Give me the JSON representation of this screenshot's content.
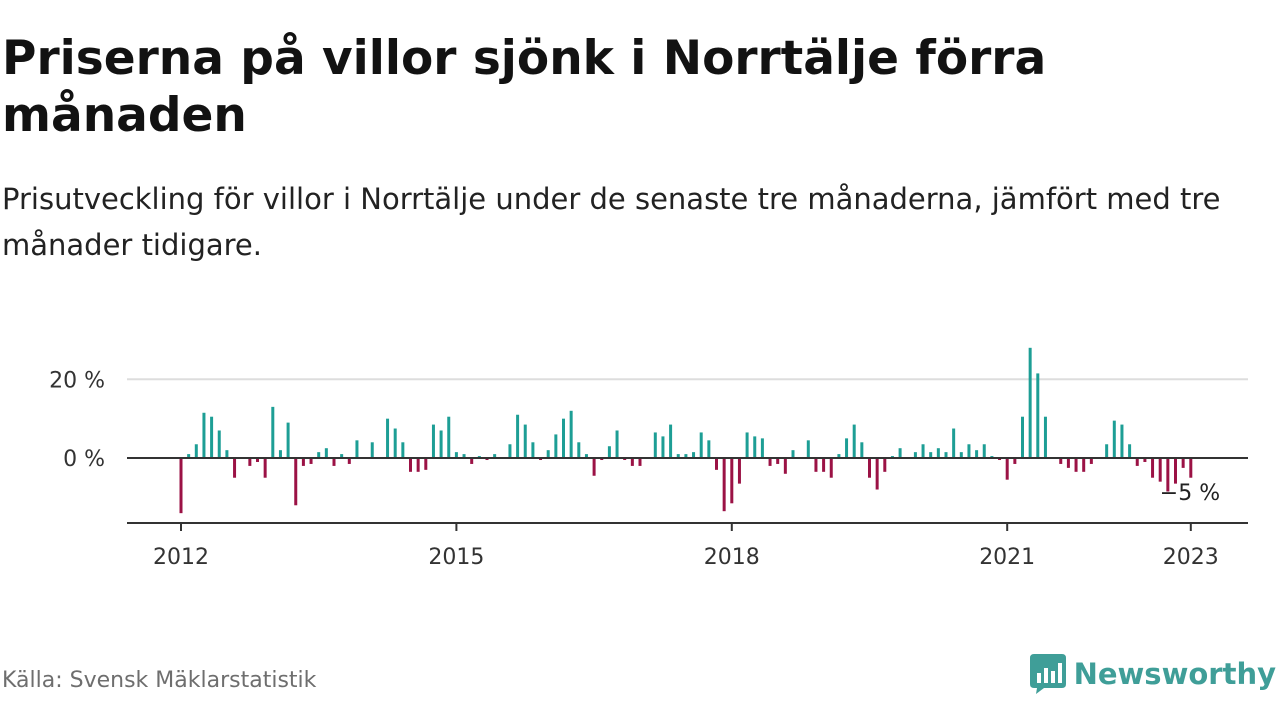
{
  "header": {
    "title": "Priserna på villor sjönk i Norrtälje förra månaden",
    "subtitle": "Prisutveckling för villor i Norrtälje under de senaste tre månaderna, jämfört med tre månader tidigare."
  },
  "footer": {
    "source": "Källa: Svensk Mäklarstatistik",
    "brand": "Newsworthy"
  },
  "colors": {
    "positive": "#1d9e95",
    "negative": "#9b1245",
    "grid": "#dddddd",
    "axis": "#333333",
    "brand": "#3f9e98"
  },
  "chart_data": {
    "type": "bar",
    "title": "",
    "xlabel": "",
    "ylabel": "",
    "ylim": [
      -16.5,
      31
    ],
    "y_ticks": [
      0,
      20
    ],
    "y_tick_labels": [
      "0 %",
      "20 %"
    ],
    "x_ticks": [
      "2012-01",
      "2015-01",
      "2018-01",
      "2021-01",
      "2023-01"
    ],
    "x_tick_labels": [
      "2012",
      "2015",
      "2018",
      "2021",
      "2023"
    ],
    "grid": true,
    "last_value_label": "−5 %",
    "x": [
      "2012-01",
      "2012-02",
      "2012-03",
      "2012-04",
      "2012-05",
      "2012-06",
      "2012-07",
      "2012-08",
      "2012-09",
      "2012-10",
      "2012-11",
      "2012-12",
      "2013-01",
      "2013-02",
      "2013-03",
      "2013-04",
      "2013-05",
      "2013-06",
      "2013-07",
      "2013-08",
      "2013-09",
      "2013-10",
      "2013-11",
      "2013-12",
      "2014-01",
      "2014-02",
      "2014-03",
      "2014-04",
      "2014-05",
      "2014-06",
      "2014-07",
      "2014-08",
      "2014-09",
      "2014-10",
      "2014-11",
      "2014-12",
      "2015-01",
      "2015-02",
      "2015-03",
      "2015-04",
      "2015-05",
      "2015-06",
      "2015-07",
      "2015-08",
      "2015-09",
      "2015-10",
      "2015-11",
      "2015-12",
      "2016-01",
      "2016-02",
      "2016-03",
      "2016-04",
      "2016-05",
      "2016-06",
      "2016-07",
      "2016-08",
      "2016-09",
      "2016-10",
      "2016-11",
      "2016-12",
      "2017-01",
      "2017-02",
      "2017-03",
      "2017-04",
      "2017-05",
      "2017-06",
      "2017-07",
      "2017-08",
      "2017-09",
      "2017-10",
      "2017-11",
      "2017-12",
      "2018-01",
      "2018-02",
      "2018-03",
      "2018-04",
      "2018-05",
      "2018-06",
      "2018-07",
      "2018-08",
      "2018-09",
      "2018-10",
      "2018-11",
      "2018-12",
      "2019-01",
      "2019-02",
      "2019-03",
      "2019-04",
      "2019-05",
      "2019-06",
      "2019-07",
      "2019-08",
      "2019-09",
      "2019-10",
      "2019-11",
      "2019-12",
      "2020-01",
      "2020-02",
      "2020-03",
      "2020-04",
      "2020-05",
      "2020-06",
      "2020-07",
      "2020-08",
      "2020-09",
      "2020-10",
      "2020-11",
      "2020-12",
      "2021-01",
      "2021-02",
      "2021-03",
      "2021-04",
      "2021-05",
      "2021-06",
      "2021-07",
      "2021-08",
      "2021-09",
      "2021-10",
      "2021-11",
      "2021-12",
      "2022-01",
      "2022-02",
      "2022-03",
      "2022-04",
      "2022-05",
      "2022-06",
      "2022-07",
      "2022-08",
      "2022-09",
      "2022-10",
      "2022-11",
      "2022-12",
      "2023-01"
    ],
    "values": [
      -14,
      1,
      3.5,
      11.5,
      10.5,
      7,
      2,
      -5,
      0,
      -2,
      -1,
      -5,
      13,
      2,
      9,
      -12,
      -2,
      -1.5,
      1.5,
      2.5,
      -2,
      1,
      -1.5,
      4.5,
      0,
      4,
      0,
      10,
      7.5,
      4,
      -3.5,
      -3.5,
      -3,
      8.5,
      7,
      10.5,
      1.5,
      1,
      -1.5,
      0.5,
      -0.5,
      1,
      0,
      3.5,
      11,
      8.5,
      4,
      -0.5,
      2,
      6,
      10,
      12,
      4,
      1,
      -4.5,
      -0.5,
      3,
      7,
      -0.5,
      -2,
      -2,
      0,
      6.5,
      5.5,
      8.5,
      1,
      1,
      1.5,
      6.5,
      4.5,
      -3,
      -13.5,
      -11.5,
      -6.5,
      6.5,
      5.5,
      5,
      -2,
      -1.5,
      -4,
      2,
      0,
      4.5,
      -3.5,
      -3.5,
      -5,
      1,
      5,
      8.5,
      4,
      -5,
      -8,
      -3.5,
      0.5,
      2.5,
      0,
      1.5,
      3.5,
      1.5,
      2.5,
      1.5,
      7.5,
      1.5,
      3.5,
      2,
      3.5,
      0.5,
      -0.5,
      -5.5,
      -1.5,
      10.5,
      28,
      21.5,
      10.5,
      0,
      -1.5,
      -2.5,
      -3.5,
      -3.5,
      -1.5,
      0,
      3.5,
      9.5,
      8.5,
      3.5,
      -2,
      -1,
      -5,
      -6,
      -8.5,
      -6.5,
      -2.5,
      -5
    ]
  }
}
